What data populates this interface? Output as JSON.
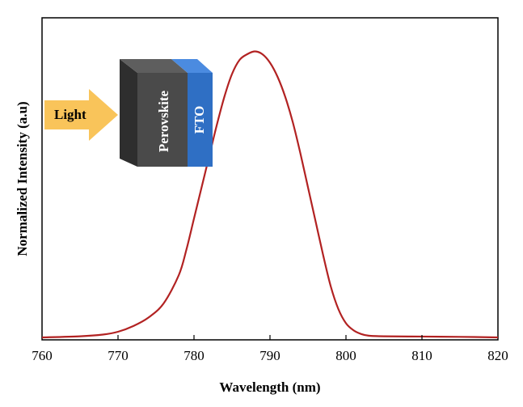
{
  "chart_data": {
    "type": "line",
    "title": "",
    "xlabel": "Wavelength (nm)",
    "ylabel": "Normalized Intensity (a.u)",
    "xlim": [
      760,
      820
    ],
    "ylim": [
      0,
      1.05
    ],
    "xticks": [
      "760",
      "770",
      "780",
      "790",
      "800",
      "810",
      "820"
    ],
    "grid": false,
    "series": [
      {
        "color": "#b22222",
        "x": [
          760,
          765,
          768,
          770,
          772,
          774,
          776,
          778,
          779,
          780,
          781,
          782,
          783,
          784,
          785,
          786,
          787,
          788,
          789,
          790,
          791,
          792,
          793,
          794,
          795,
          796,
          797,
          798,
          799,
          800,
          801,
          802,
          803,
          805,
          810,
          815,
          820
        ],
        "y": [
          0.0,
          0.004,
          0.01,
          0.02,
          0.04,
          0.07,
          0.12,
          0.22,
          0.31,
          0.42,
          0.53,
          0.64,
          0.75,
          0.85,
          0.93,
          0.98,
          1.0,
          1.01,
          1.0,
          0.97,
          0.92,
          0.85,
          0.76,
          0.65,
          0.53,
          0.41,
          0.29,
          0.18,
          0.1,
          0.05,
          0.025,
          0.012,
          0.006,
          0.004,
          0.003,
          0.002,
          0.0
        ]
      }
    ]
  },
  "inset": {
    "arrow_label": "Light",
    "layer1_label": "Perovskite",
    "layer2_label": "FTO",
    "colors": {
      "arrow": "#f9c45a",
      "perovskite_front": "#4a4a4a",
      "perovskite_top": "#5e5e5e",
      "perovskite_side": "#2e2e2e",
      "fto_front": "#2f6fc4",
      "fto_top": "#4b8be0"
    }
  }
}
